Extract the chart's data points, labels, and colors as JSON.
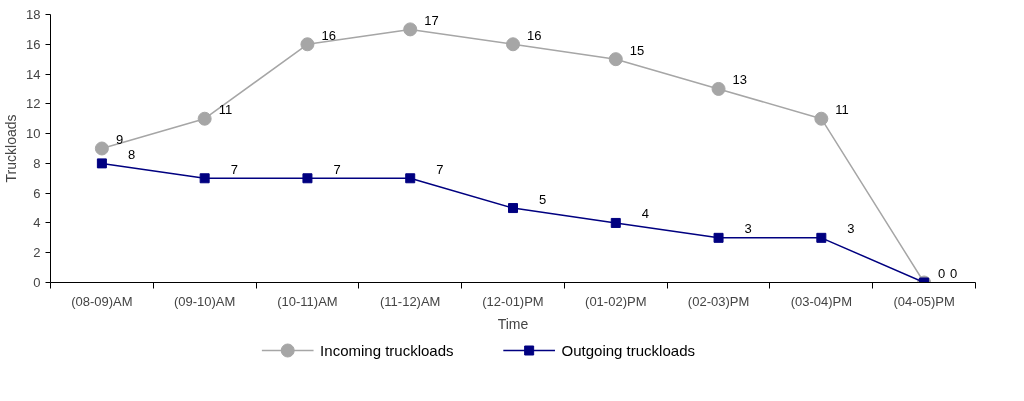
{
  "chart_data": {
    "type": "line",
    "xlabel": "Time",
    "ylabel": "Truckloads",
    "categories": [
      "(08-09)AM",
      "(09-10)AM",
      "(10-11)AM",
      "(11-12)AM",
      "(12-01)PM",
      "(01-02)PM",
      "(02-03)PM",
      "(03-04)PM",
      "(04-05)PM"
    ],
    "series": [
      {
        "name": "Incoming truckloads",
        "color": "#a6a6a6",
        "marker": "circle",
        "values": [
          9,
          11,
          16,
          17,
          16,
          15,
          13,
          11,
          0
        ]
      },
      {
        "name": "Outgoing truckloads",
        "color": "#000080",
        "marker": "square",
        "values": [
          8,
          7,
          7,
          7,
          5,
          4,
          3,
          3,
          0
        ]
      }
    ],
    "ylim": [
      0,
      18
    ],
    "yticks": [
      0,
      2,
      4,
      6,
      8,
      10,
      12,
      14,
      16,
      18
    ],
    "grid": false,
    "legend": "bottom",
    "data_labels": true,
    "line_style": "solid"
  }
}
